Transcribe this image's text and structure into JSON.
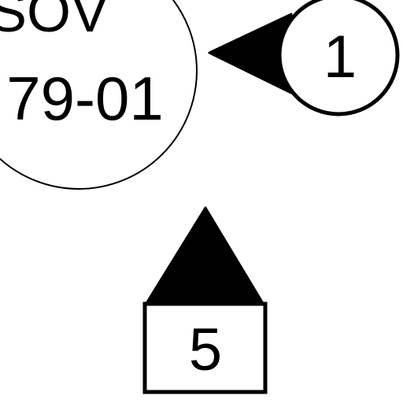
{
  "diagram": {
    "valve_tag": {
      "top_text": "SOV",
      "bottom_text": "79-01"
    },
    "callout_circle": {
      "label": "1"
    },
    "callout_box": {
      "label": "5"
    }
  },
  "colors": {
    "ink": "#000000",
    "paper": "#ffffff"
  }
}
